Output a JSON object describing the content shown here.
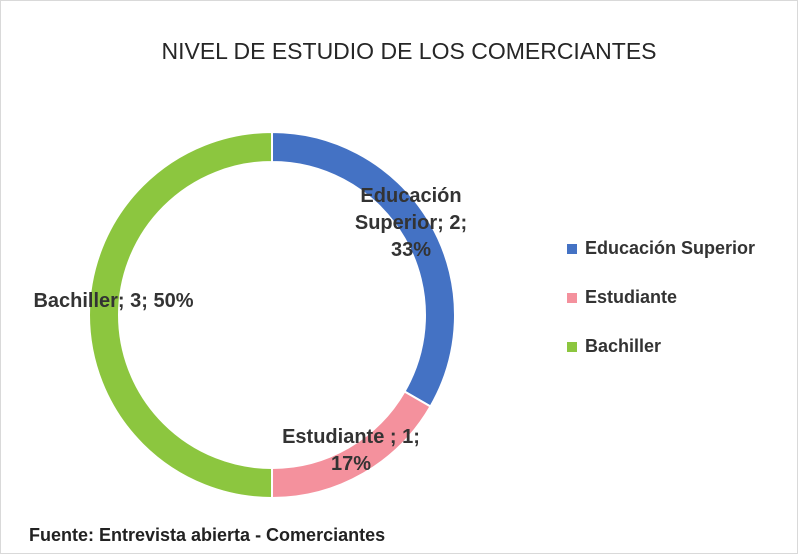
{
  "chart_data": {
    "type": "donut",
    "title": "NIVEL DE ESTUDIO DE LOS COMERCIANTES",
    "categories": [
      "Educación Superior",
      "Estudiante",
      "Bachiller"
    ],
    "values": [
      2,
      1,
      3
    ],
    "value_labels": [
      "Educación Superior; 2; 33%",
      "Estudiante ; 1; 17%",
      "Bachiller; 3; 50%"
    ],
    "colors": [
      "#4472c4",
      "#f4919d",
      "#8cc63f"
    ],
    "legend": "right",
    "source": "Fuente: Entrevista abierta - Comerciantes"
  }
}
